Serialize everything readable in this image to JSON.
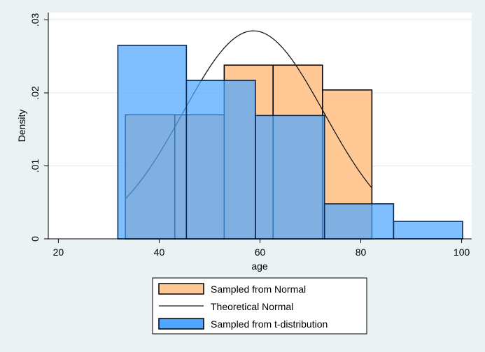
{
  "chart_data": {
    "type": "histogram",
    "xlabel": "age",
    "ylabel": "Density",
    "xlim": [
      18,
      102
    ],
    "ylim": [
      0,
      0.031
    ],
    "x_ticks": [
      20,
      40,
      60,
      80,
      100
    ],
    "y_ticks": [
      0,
      0.01,
      0.02,
      0.03
    ],
    "x_tick_labels": [
      "20",
      "40",
      "60",
      "80",
      "100"
    ],
    "y_tick_labels": [
      "0",
      ".01",
      ".02",
      ".03"
    ],
    "grid": true,
    "legend_position": "bottom",
    "series": [
      {
        "name": "Sampled from Normal",
        "kind": "histogram",
        "color": "#ffc895",
        "bins": [
          {
            "x0": 33.3,
            "x1": 43.1,
            "density": 0.017
          },
          {
            "x0": 43.1,
            "x1": 52.9,
            "density": 0.017
          },
          {
            "x0": 52.9,
            "x1": 62.6,
            "density": 0.0238
          },
          {
            "x0": 62.6,
            "x1": 72.4,
            "density": 0.0238
          },
          {
            "x0": 72.4,
            "x1": 82.2,
            "density": 0.0204
          }
        ]
      },
      {
        "name": "Theoretical Normal",
        "kind": "line",
        "color": "#1a1a1a",
        "curve": {
          "mean": 58.7,
          "sd": 14.0,
          "x_from": 33.3,
          "x_to": 82.2
        }
      },
      {
        "name": "Sampled from t-distribution",
        "kind": "histogram",
        "color": "#4da6ff",
        "bins": [
          {
            "x0": 31.8,
            "x1": 45.4,
            "density": 0.0265
          },
          {
            "x0": 45.4,
            "x1": 59.1,
            "density": 0.0217
          },
          {
            "x0": 59.1,
            "x1": 72.8,
            "density": 0.0169
          },
          {
            "x0": 72.8,
            "x1": 86.5,
            "density": 0.0048
          },
          {
            "x0": 86.5,
            "x1": 100.2,
            "density": 0.0024
          }
        ]
      }
    ]
  }
}
